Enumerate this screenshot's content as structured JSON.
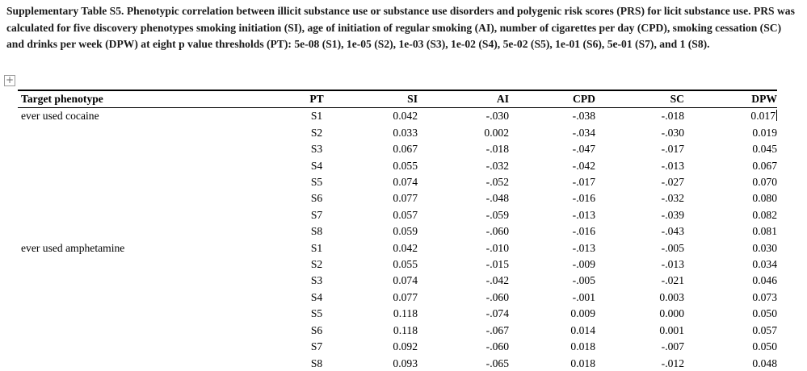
{
  "caption": "Supplementary Table S5. Phenotypic correlation between illicit substance use or substance use disorders and polygenic risk scores (PRS) for licit substance use. PRS was calculated for five discovery phenotypes smoking initiation (SI), age of initiation of regular smoking (AI), number of cigarettes per day (CPD), smoking cessation (SC) and drinks per week (DPW) at eight p value thresholds (PT): 5e-08 (S1), 1e-05 (S2), 1e-03 (S3), 1e-02 (S4), 5e-02 (S5), 1e-01 (S6), 5e-01 (S7), and 1 (S8).",
  "icons": {
    "table_handle": "+"
  },
  "cursor": {
    "group": 0,
    "row": 0,
    "colIndex": 6
  },
  "table": {
    "columns": [
      "Target phenotype",
      "PT",
      "SI",
      "AI",
      "CPD",
      "SC",
      "DPW"
    ],
    "groups": [
      {
        "phenotype": "ever used cocaine",
        "rows": [
          {
            "pt": "S1",
            "si": "0.042",
            "ai": "-.030",
            "cpd": "-.038",
            "sc": "-.018",
            "dpw": "0.017"
          },
          {
            "pt": "S2",
            "si": "0.033",
            "ai": "0.002",
            "cpd": "-.034",
            "sc": "-.030",
            "dpw": "0.019"
          },
          {
            "pt": "S3",
            "si": "0.067",
            "ai": "-.018",
            "cpd": "-.047",
            "sc": "-.017",
            "dpw": "0.045"
          },
          {
            "pt": "S4",
            "si": "0.055",
            "ai": "-.032",
            "cpd": "-.042",
            "sc": "-.013",
            "dpw": "0.067"
          },
          {
            "pt": "S5",
            "si": "0.074",
            "ai": "-.052",
            "cpd": "-.017",
            "sc": "-.027",
            "dpw": "0.070"
          },
          {
            "pt": "S6",
            "si": "0.077",
            "ai": "-.048",
            "cpd": "-.016",
            "sc": "-.032",
            "dpw": "0.080"
          },
          {
            "pt": "S7",
            "si": "0.057",
            "ai": "-.059",
            "cpd": "-.013",
            "sc": "-.039",
            "dpw": "0.082"
          },
          {
            "pt": "S8",
            "si": "0.059",
            "ai": "-.060",
            "cpd": "-.016",
            "sc": "-.043",
            "dpw": "0.081"
          }
        ]
      },
      {
        "phenotype": "ever used amphetamine",
        "rows": [
          {
            "pt": "S1",
            "si": "0.042",
            "ai": "-.010",
            "cpd": "-.013",
            "sc": "-.005",
            "dpw": "0.030"
          },
          {
            "pt": "S2",
            "si": "0.055",
            "ai": "-.015",
            "cpd": "-.009",
            "sc": "-.013",
            "dpw": "0.034"
          },
          {
            "pt": "S3",
            "si": "0.074",
            "ai": "-.042",
            "cpd": "-.005",
            "sc": "-.021",
            "dpw": "0.046"
          },
          {
            "pt": "S4",
            "si": "0.077",
            "ai": "-.060",
            "cpd": "-.001",
            "sc": "0.003",
            "dpw": "0.073"
          },
          {
            "pt": "S5",
            "si": "0.118",
            "ai": "-.074",
            "cpd": "0.009",
            "sc": "0.000",
            "dpw": "0.050"
          },
          {
            "pt": "S6",
            "si": "0.118",
            "ai": "-.067",
            "cpd": "0.014",
            "sc": "0.001",
            "dpw": "0.057"
          },
          {
            "pt": "S7",
            "si": "0.092",
            "ai": "-.060",
            "cpd": "0.018",
            "sc": "-.007",
            "dpw": "0.050"
          },
          {
            "pt": "S8",
            "si": "0.093",
            "ai": "-.065",
            "cpd": "0.018",
            "sc": "-.012",
            "dpw": "0.048"
          }
        ]
      }
    ]
  }
}
